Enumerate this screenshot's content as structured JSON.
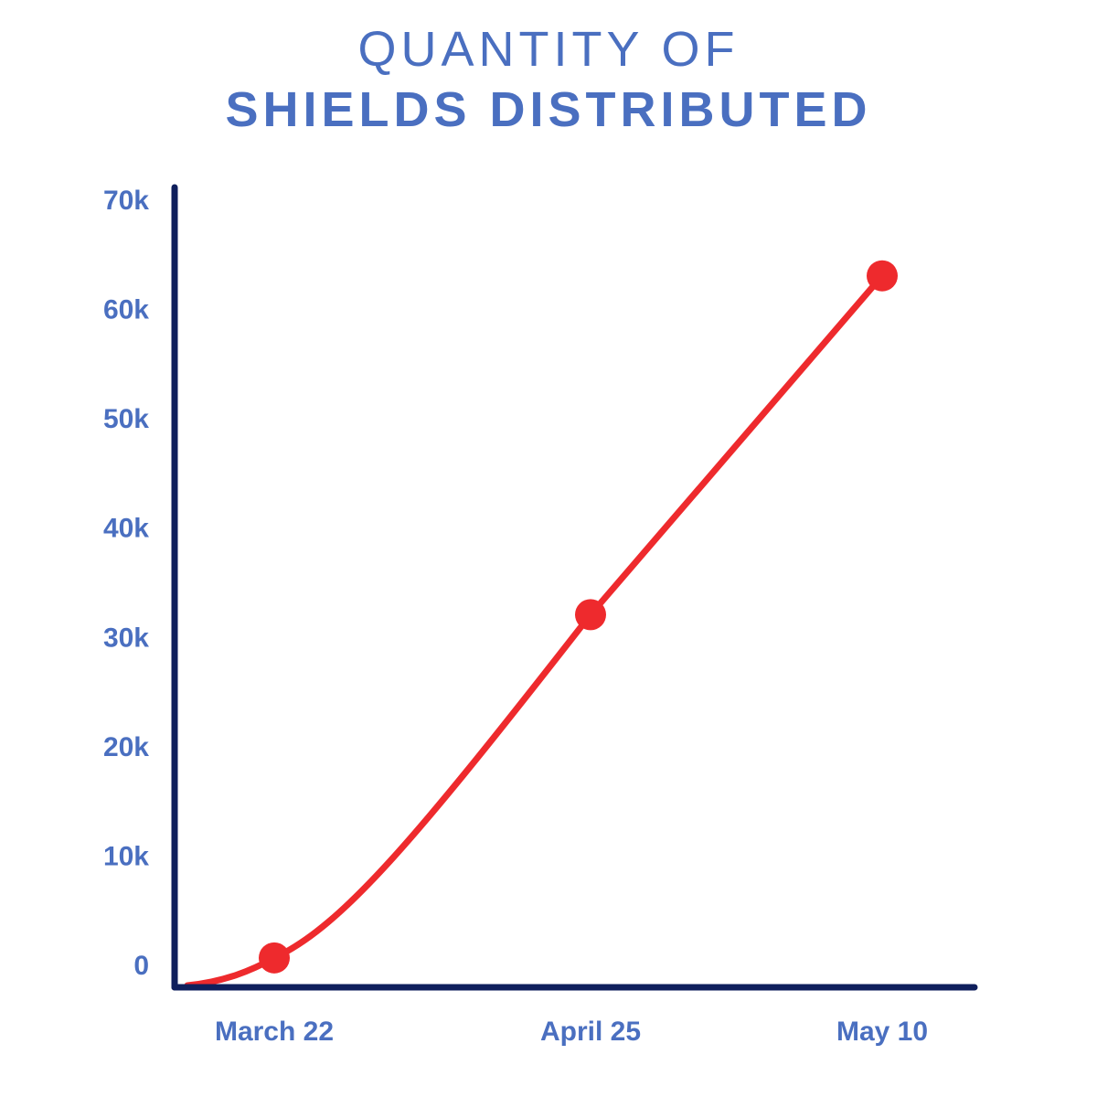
{
  "colors": {
    "text": "#4a6fc0",
    "axis": "#0f1f5c",
    "series": "#ee2a2d"
  },
  "chart_data": {
    "type": "line",
    "title_line1": "QUANTITY OF",
    "title_line2": "SHIELDS DISTRIBUTED",
    "xlabel": "",
    "ylabel": "",
    "x": [
      "March 22",
      "April 25",
      "May 10"
    ],
    "series": [
      {
        "values": [
          600,
          32000,
          63000
        ]
      }
    ],
    "ylim": [
      0,
      70000
    ],
    "yticks": [
      0,
      10000,
      20000,
      30000,
      40000,
      50000,
      60000,
      70000
    ],
    "ytick_labels": [
      "0",
      "10k",
      "20k",
      "30k",
      "40k",
      "50k",
      "60k",
      "70k"
    ],
    "curve_starts_at_origin": true,
    "grid": false,
    "legend": "none"
  }
}
